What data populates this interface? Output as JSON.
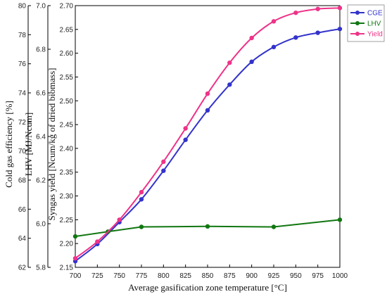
{
  "chart_data": {
    "type": "line",
    "xlabel": "Average gasification zone temperature  [°C]",
    "x": [
      700,
      725,
      750,
      775,
      800,
      825,
      850,
      875,
      900,
      925,
      950,
      975,
      1000
    ],
    "xlim": [
      700,
      1000
    ],
    "x_ticks": [
      "700",
      "725",
      "750",
      "775",
      "800",
      "825",
      "850",
      "875",
      "900",
      "925",
      "950",
      "975",
      "1000"
    ],
    "axes": [
      {
        "id": "cge",
        "label": "Cold gas efficiency [%]",
        "ylim": [
          62,
          80
        ],
        "ticks": [
          "62",
          "64",
          "66",
          "68",
          "70",
          "72",
          "74",
          "76",
          "78",
          "80"
        ]
      },
      {
        "id": "lhv",
        "label": "LHV [MJ/Ncum]",
        "ylim": [
          5.8,
          7.0
        ],
        "ticks": [
          "5.8",
          "6.0",
          "6.2",
          "6.4",
          "6.6",
          "6.8",
          "7.0"
        ]
      },
      {
        "id": "yield",
        "label": "Syngas yield [Ncum/kg of dried biomass]",
        "ylim": [
          2.15,
          2.7
        ],
        "ticks": [
          "2.15",
          "2.20",
          "2.25",
          "2.30",
          "2.35",
          "2.40",
          "2.45",
          "2.50",
          "2.55",
          "2.60",
          "2.65",
          "2.70"
        ]
      }
    ],
    "series": [
      {
        "name": "CGE",
        "axis": "yield",
        "color": "#3333cc",
        "x": [
          700,
          725,
          750,
          775,
          800,
          825,
          850,
          875,
          900,
          925,
          950,
          975,
          1000
        ],
        "values": [
          2.163,
          2.199,
          2.245,
          2.293,
          2.353,
          2.418,
          2.48,
          2.534,
          2.582,
          2.613,
          2.633,
          2.643,
          2.651
        ]
      },
      {
        "name": "LHV",
        "axis": "yield",
        "color": "#117711",
        "x": [
          700,
          737,
          775,
          850,
          925,
          1000
        ],
        "values": [
          2.215,
          2.225,
          2.235,
          2.236,
          2.235,
          2.25
        ]
      },
      {
        "name": "Yield",
        "axis": "yield",
        "color": "#ee3388",
        "x": [
          700,
          725,
          750,
          775,
          800,
          825,
          850,
          875,
          900,
          925,
          950,
          975,
          1000
        ],
        "values": [
          2.169,
          2.204,
          2.25,
          2.308,
          2.372,
          2.442,
          2.515,
          2.58,
          2.632,
          2.667,
          2.685,
          2.693,
          2.695
        ]
      }
    ],
    "legend": {
      "position": "top-right",
      "entries": [
        "CGE",
        "LHV",
        "Yield"
      ]
    },
    "grid": false
  }
}
